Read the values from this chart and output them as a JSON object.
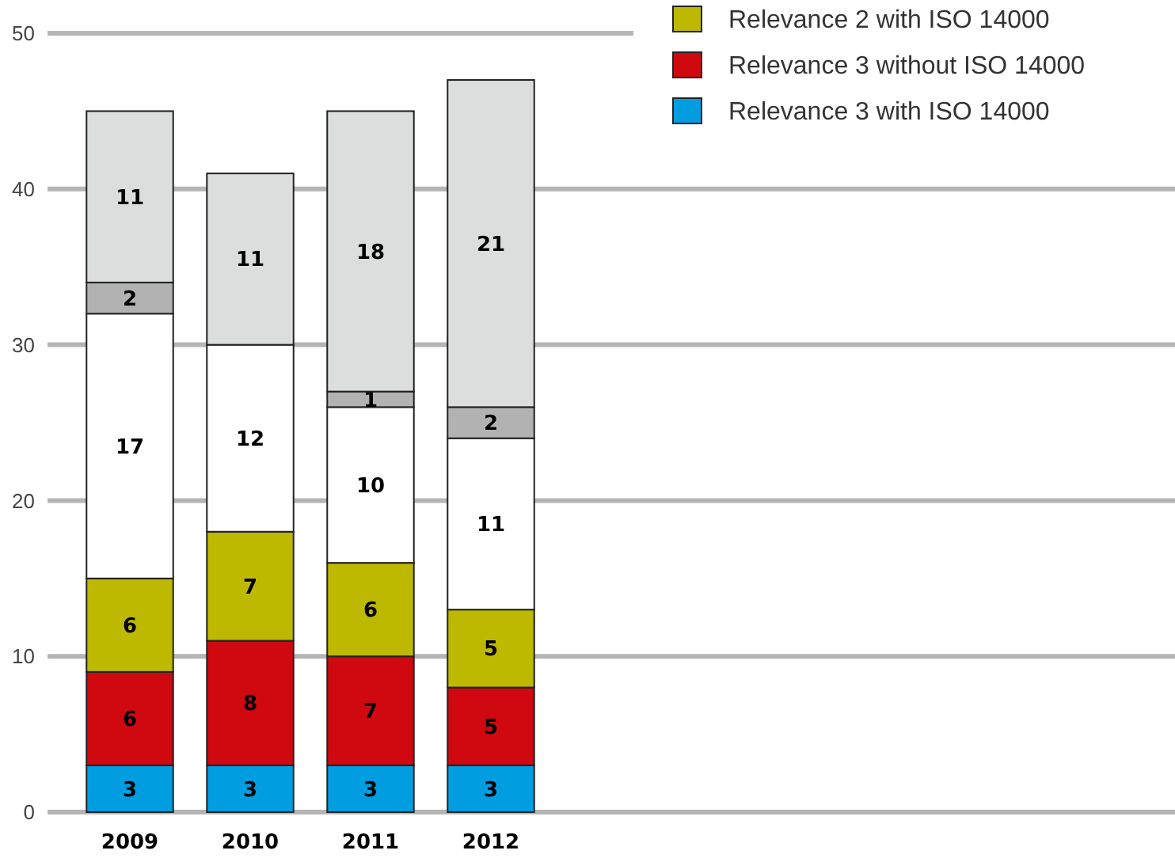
{
  "chart_data": {
    "type": "bar",
    "stacked": true,
    "categories": [
      "2009",
      "2010",
      "2011",
      "2012"
    ],
    "series": [
      {
        "name": "Relevance 3 with ISO 14000",
        "color": "#009ee0",
        "values": [
          3,
          3,
          3,
          3
        ]
      },
      {
        "name": "Relevance 3 without ISO 14000",
        "color": "#d0080f",
        "values": [
          6,
          8,
          7,
          5
        ]
      },
      {
        "name": "Relevance 2 with ISO 14000",
        "color": "#bdb800",
        "values": [
          6,
          7,
          6,
          5
        ]
      },
      {
        "color": "#ffffff",
        "values": [
          17,
          12,
          10,
          11
        ]
      },
      {
        "color": "#b2b2b2",
        "values": [
          2,
          null,
          1,
          2
        ]
      },
      {
        "color": "#dcdddd",
        "values": [
          11,
          11,
          18,
          21
        ]
      }
    ],
    "ylim": [
      0,
      50
    ],
    "yticks": [
      0,
      10,
      20,
      30,
      40,
      50
    ],
    "grid": "y",
    "legend": "top right",
    "data_labels": true
  }
}
